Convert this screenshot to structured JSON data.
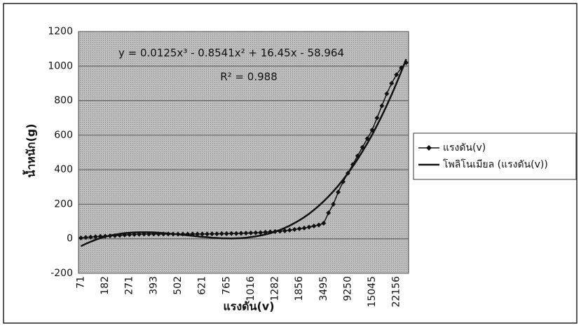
{
  "chart_data": {
    "type": "line",
    "equation": "y = 0.0125x³ - 0.8541x² + 16.45x - 58.964",
    "r_squared": "R² = 0.988",
    "x_label": "แรงดัน(v)",
    "y_label": "น้ำหนัก(g)",
    "categories": [
      "71",
      null,
      null,
      null,
      null,
      "182",
      null,
      null,
      null,
      null,
      "271",
      null,
      null,
      null,
      null,
      "393",
      null,
      null,
      null,
      null,
      "502",
      null,
      null,
      null,
      null,
      "621",
      null,
      null,
      null,
      null,
      "765",
      null,
      null,
      null,
      null,
      "1016",
      null,
      null,
      null,
      null,
      "1282",
      null,
      null,
      null,
      null,
      "1856",
      null,
      null,
      null,
      null,
      "3495",
      null,
      null,
      null,
      null,
      "9250",
      null,
      null,
      null,
      null,
      "15045",
      null,
      null,
      null,
      null,
      "22156",
      null,
      null
    ],
    "series": [
      {
        "name": "แรงดัน(v)",
        "color": "#111111",
        "marker": "diamond",
        "values": [
          5,
          8,
          10,
          12,
          14,
          15,
          17,
          18,
          20,
          22,
          24,
          25,
          26,
          27,
          27,
          28,
          28,
          28,
          28,
          27,
          27,
          27,
          27,
          28,
          28,
          28,
          28,
          29,
          29,
          30,
          30,
          31,
          31,
          32,
          33,
          34,
          35,
          36,
          38,
          40,
          42,
          44,
          46,
          50,
          54,
          58,
          62,
          68,
          74,
          80,
          90,
          150,
          200,
          270,
          330,
          380,
          430,
          480,
          530,
          580,
          630,
          700,
          770,
          840,
          900,
          950,
          990,
          1020
        ]
      },
      {
        "name": "โพลิโนเมียล (แรงดัน(v))",
        "color": "#111111",
        "marker": "none",
        "values": [
          -43,
          -29,
          -17,
          -6,
          4,
          12,
          19,
          24,
          29,
          33,
          35,
          37,
          38,
          38,
          38,
          37,
          35,
          33,
          31,
          28,
          26,
          23,
          20,
          17,
          14,
          11,
          9,
          6,
          5,
          3,
          3,
          2,
          3,
          4,
          6,
          10,
          14,
          19,
          25,
          32,
          41,
          51,
          63,
          76,
          91,
          107,
          125,
          145,
          167,
          191,
          217,
          245,
          275,
          307,
          342,
          379,
          419,
          461,
          506,
          553,
          603,
          657,
          713,
          772,
          834,
          900,
          969,
          1040
        ]
      }
    ],
    "ylim": [
      -200,
      1200
    ],
    "yticks": [
      -200,
      0,
      200,
      400,
      600,
      800,
      1000,
      1200
    ],
    "grid": true,
    "legend": "right"
  }
}
